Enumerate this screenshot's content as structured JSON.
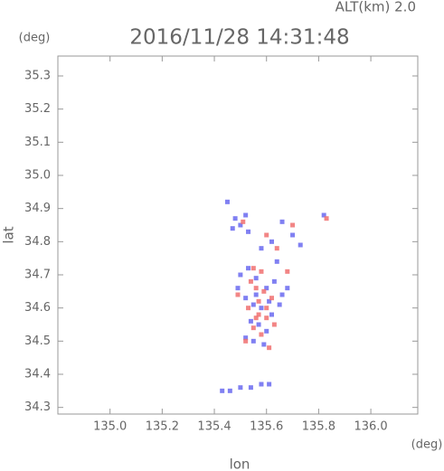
{
  "chart_data": {
    "type": "scatter",
    "title": "2016/11/28 14:31:48",
    "annotation": "ALT(km)  2.0",
    "y_unit": "(deg)",
    "x_unit": "(deg)",
    "xlabel": "lon",
    "ylabel": "lat",
    "xlim": [
      134.8,
      136.18
    ],
    "ylim": [
      34.28,
      35.36
    ],
    "xticks": [
      {
        "value": 135.0,
        "label": "135.0"
      },
      135.2,
      135.4,
      135.6,
      135.8,
      {
        "value": 136.0,
        "label": "136.0"
      }
    ],
    "yticks": [
      34.3,
      34.4,
      34.5,
      34.6,
      34.7,
      34.8,
      34.9,
      {
        "value": 35.0,
        "label": "35.0"
      },
      35.1,
      35.2,
      35.3
    ],
    "series": [
      {
        "color": "#6a6af0",
        "x": [
          135.45,
          135.48,
          135.5,
          135.53,
          135.47,
          135.52,
          135.62,
          135.66,
          135.7,
          135.73,
          135.82,
          135.58,
          135.64,
          135.5,
          135.53,
          135.56,
          135.6,
          135.63,
          135.52,
          135.55,
          135.58,
          135.61,
          135.54,
          135.57,
          135.6,
          135.52,
          135.55,
          135.66,
          135.68,
          135.43,
          135.46,
          135.5,
          135.54,
          135.58,
          135.61,
          135.49,
          135.62,
          135.56,
          135.59,
          135.65
        ],
        "y": [
          34.92,
          34.87,
          34.85,
          34.83,
          34.84,
          34.88,
          34.8,
          34.86,
          34.82,
          34.79,
          34.88,
          34.78,
          34.74,
          34.7,
          34.72,
          34.69,
          34.66,
          34.68,
          34.63,
          34.61,
          34.6,
          34.62,
          34.56,
          34.55,
          34.53,
          34.51,
          34.5,
          34.64,
          34.66,
          34.35,
          34.35,
          34.36,
          34.36,
          34.37,
          34.37,
          34.66,
          34.58,
          34.64,
          34.49,
          34.61
        ]
      },
      {
        "color": "#f07070",
        "x": [
          135.51,
          135.6,
          135.64,
          135.55,
          135.58,
          135.56,
          135.59,
          135.62,
          135.53,
          135.57,
          135.6,
          135.55,
          135.58,
          135.54,
          135.57,
          135.6,
          135.63,
          135.68,
          135.49,
          135.83,
          135.7,
          135.52,
          135.61,
          135.56
        ],
        "y": [
          34.86,
          34.82,
          34.78,
          34.72,
          34.71,
          34.66,
          34.65,
          34.63,
          34.6,
          34.58,
          34.57,
          34.54,
          34.52,
          34.68,
          34.62,
          34.6,
          34.55,
          34.71,
          34.64,
          34.87,
          34.85,
          34.5,
          34.48,
          34.57
        ]
      }
    ]
  }
}
